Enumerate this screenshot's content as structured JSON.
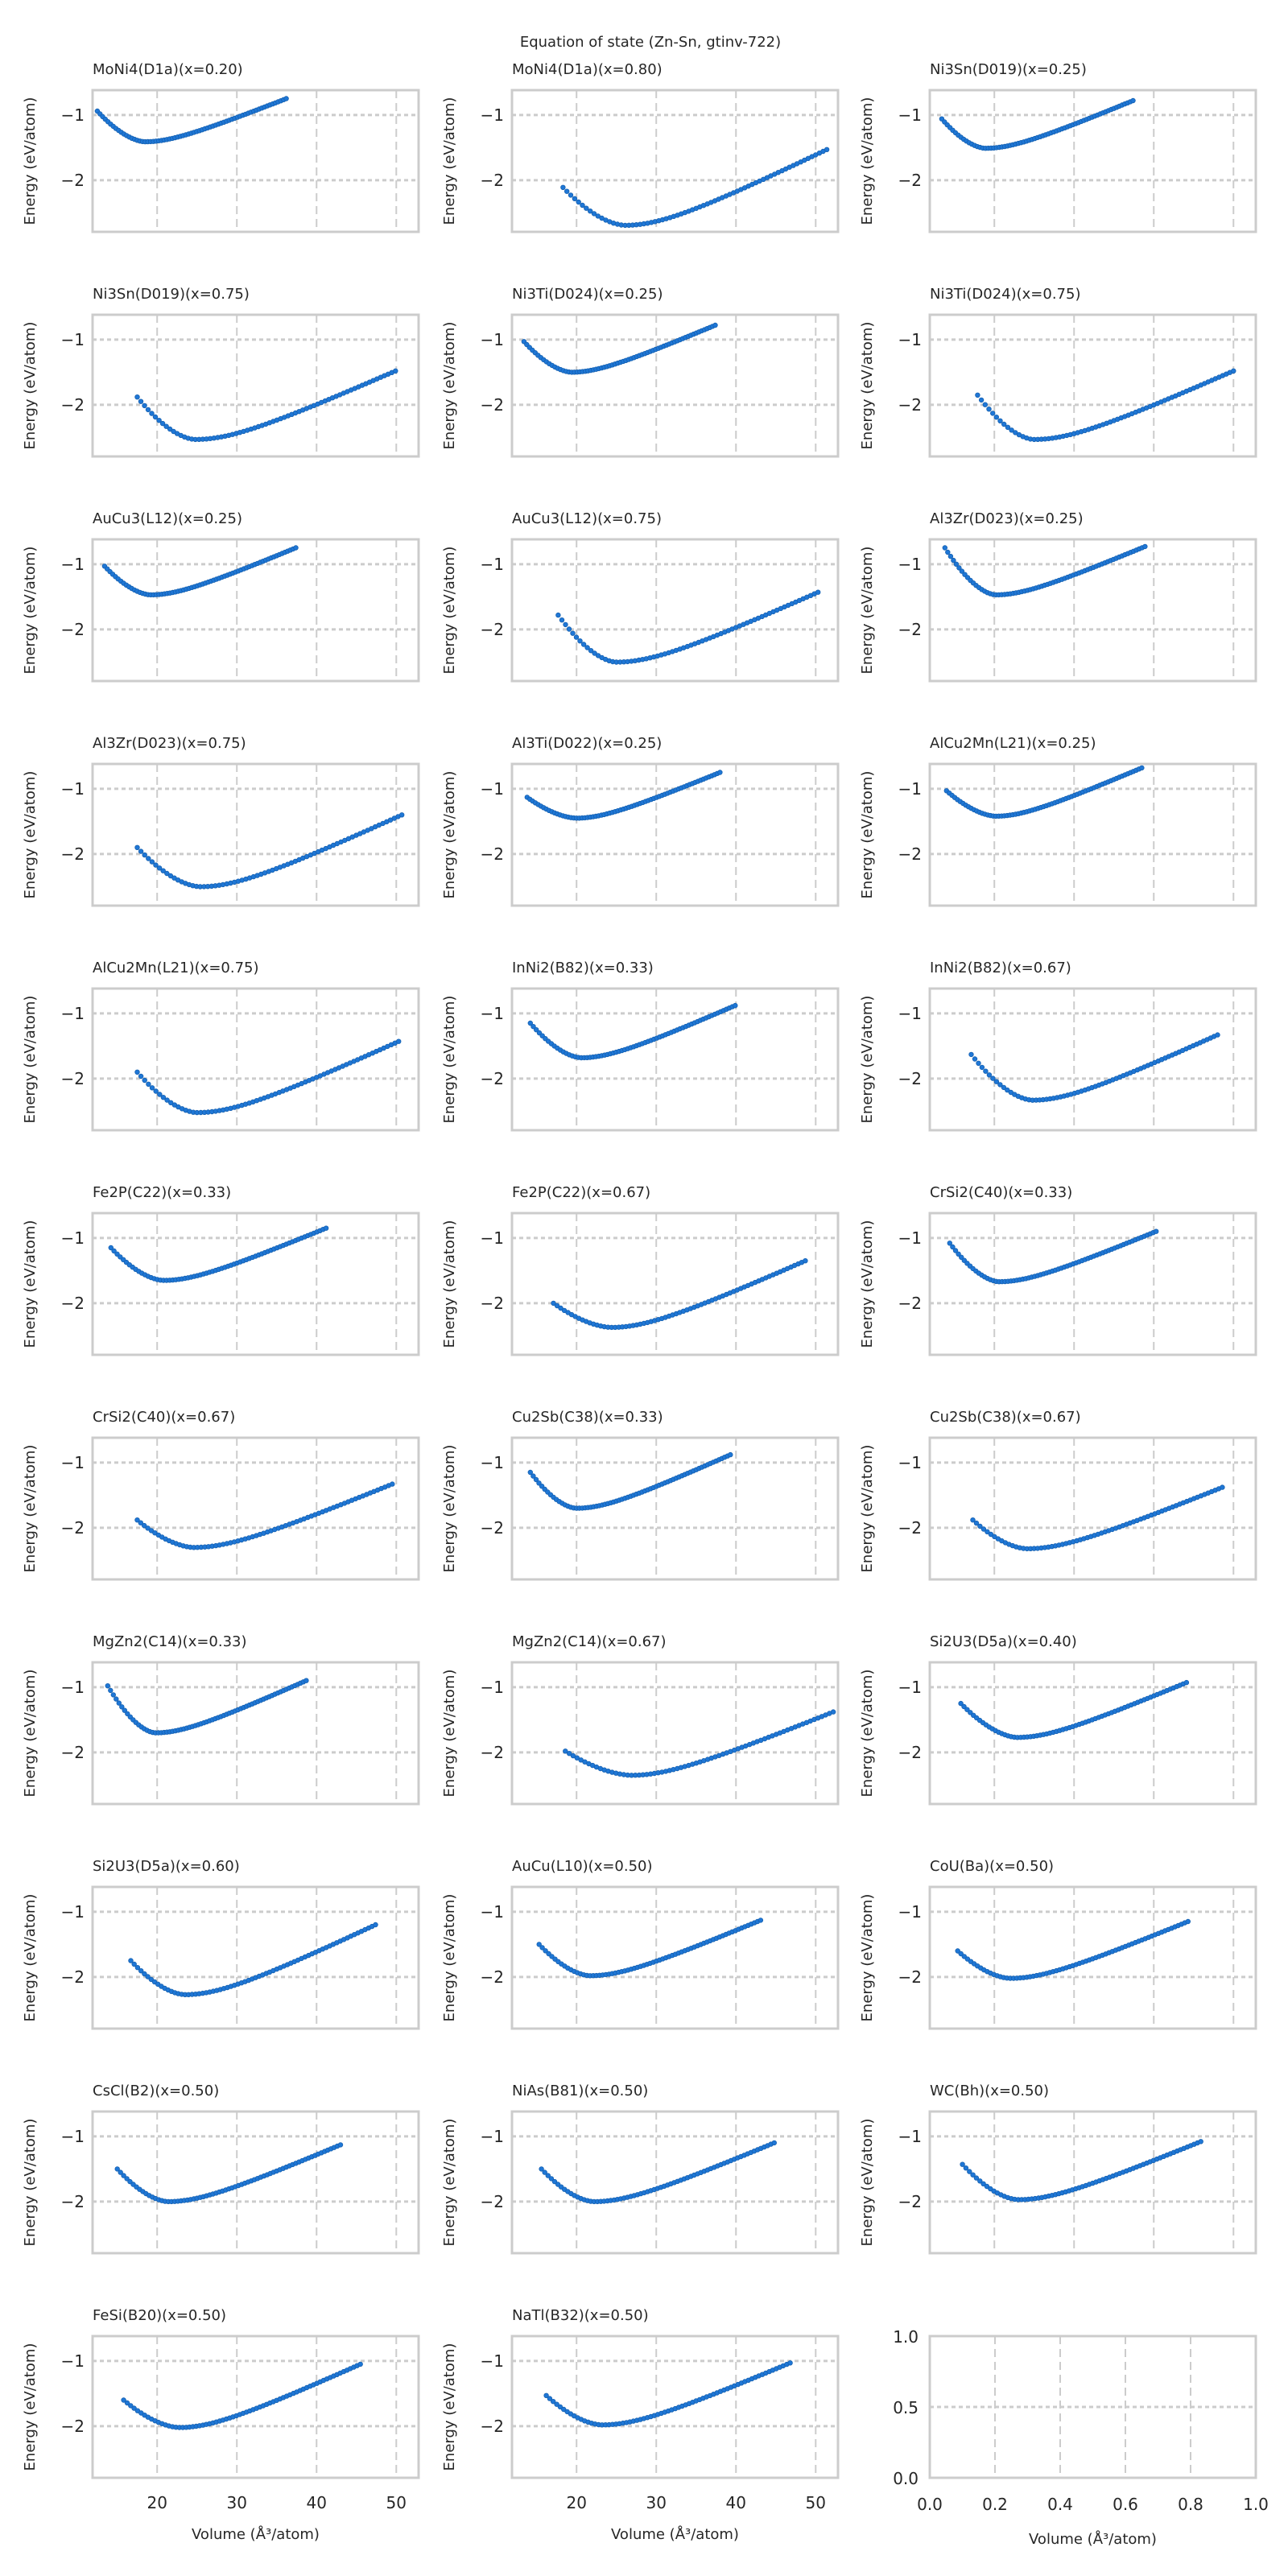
{
  "chart_data": {
    "type": "scatter",
    "title": "Equation of state (Zn-Sn, gtinv-722)",
    "xlabel": "Volume (Å$^3$/atom)",
    "xlabel_display": "Volume (Å³/atom)",
    "ylabel": "Energy (eV/atom)",
    "xlim": [
      11.9,
      52.8
    ],
    "ylim": [
      -2.79,
      -0.62
    ],
    "xticks": [
      20,
      30,
      40,
      50
    ],
    "yticks": [
      -1,
      -2
    ],
    "ytick_labels": [
      "−1",
      "−2"
    ],
    "grid": true,
    "marker_color": "#1f77d6",
    "marker_edge_color": "#1560b0",
    "grid_color": "#cccccc",
    "frame_color": "#cccccc",
    "panels": [
      {
        "title": "MoNi4(D1a)(x=0.20)",
        "start": [
          12.5,
          -0.94
        ],
        "min": [
          18.5,
          -1.41
        ],
        "end": [
          36.2,
          -0.75
        ]
      },
      {
        "title": "MoNi4(D1a)(x=0.80)",
        "start": [
          18.3,
          -2.11
        ],
        "min": [
          26.1,
          -2.69
        ],
        "end": [
          51.4,
          -1.53
        ]
      },
      {
        "title": "Ni3Sn(D019)(x=0.25)",
        "start": [
          13.4,
          -1.06
        ],
        "min": [
          18.9,
          -1.51
        ],
        "end": [
          37.4,
          -0.78
        ]
      },
      {
        "title": "Ni3Sn(D019)(x=0.75)",
        "start": [
          17.5,
          -1.88
        ],
        "min": [
          24.8,
          -2.53
        ],
        "end": [
          49.9,
          -1.48
        ]
      },
      {
        "title": "Ni3Ti(D024)(x=0.25)",
        "start": [
          13.4,
          -1.03
        ],
        "min": [
          19.4,
          -1.5
        ],
        "end": [
          37.4,
          -0.78
        ]
      },
      {
        "title": "Ni3Ti(D024)(x=0.75)",
        "start": [
          17.9,
          -1.85
        ],
        "min": [
          25.0,
          -2.53
        ],
        "end": [
          50.0,
          -1.48
        ]
      },
      {
        "title": "AuCu3(L12)(x=0.25)",
        "start": [
          13.4,
          -1.03
        ],
        "min": [
          19.2,
          -1.47
        ],
        "end": [
          37.4,
          -0.75
        ]
      },
      {
        "title": "AuCu3(L12)(x=0.75)",
        "start": [
          17.7,
          -1.78
        ],
        "min": [
          25.0,
          -2.5
        ],
        "end": [
          50.3,
          -1.43
        ]
      },
      {
        "title": "Al3Zr(D023)(x=0.25)",
        "start": [
          13.8,
          -0.75
        ],
        "min": [
          20.2,
          -1.47
        ],
        "end": [
          38.9,
          -0.73
        ]
      },
      {
        "title": "Al3Zr(D023)(x=0.75)",
        "start": [
          17.5,
          -1.9
        ],
        "min": [
          25.4,
          -2.5
        ],
        "end": [
          50.7,
          -1.4
        ]
      },
      {
        "title": "Al3Ti(D022)(x=0.25)",
        "start": [
          13.8,
          -1.13
        ],
        "min": [
          20.0,
          -1.45
        ],
        "end": [
          38.0,
          -0.75
        ]
      },
      {
        "title": "AlCu2Mn(L21)(x=0.25)",
        "start": [
          14.0,
          -1.03
        ],
        "min": [
          20.2,
          -1.42
        ],
        "end": [
          38.5,
          -0.68
        ]
      },
      {
        "title": "AlCu2Mn(L21)(x=0.75)",
        "start": [
          17.5,
          -1.9
        ],
        "min": [
          25.0,
          -2.52
        ],
        "end": [
          50.3,
          -1.43
        ]
      },
      {
        "title": "InNi2(B82)(x=0.33)",
        "start": [
          14.2,
          -1.15
        ],
        "min": [
          20.6,
          -1.68
        ],
        "end": [
          39.9,
          -0.88
        ]
      },
      {
        "title": "InNi2(B82)(x=0.67)",
        "start": [
          17.1,
          -1.63
        ],
        "min": [
          24.8,
          -2.33
        ],
        "end": [
          48.0,
          -1.33
        ]
      },
      {
        "title": "Fe2P(C22)(x=0.33)",
        "start": [
          14.2,
          -1.15
        ],
        "min": [
          20.8,
          -1.65
        ],
        "end": [
          41.2,
          -0.85
        ]
      },
      {
        "title": "Fe2P(C22)(x=0.67)",
        "start": [
          17.1,
          -2.0
        ],
        "min": [
          24.4,
          -2.37
        ],
        "end": [
          48.7,
          -1.35
        ]
      },
      {
        "title": "CrSi2(C40)(x=0.33)",
        "start": [
          14.4,
          -1.08
        ],
        "min": [
          20.6,
          -1.67
        ],
        "end": [
          40.3,
          -0.9
        ]
      },
      {
        "title": "CrSi2(C40)(x=0.67)",
        "start": [
          17.5,
          -1.88
        ],
        "min": [
          24.6,
          -2.3
        ],
        "end": [
          49.5,
          -1.33
        ]
      },
      {
        "title": "Cu2Sb(C38)(x=0.33)",
        "start": [
          14.2,
          -1.15
        ],
        "min": [
          20.0,
          -1.7
        ],
        "end": [
          39.3,
          -0.88
        ]
      },
      {
        "title": "Cu2Sb(C38)(x=0.67)",
        "start": [
          17.3,
          -1.88
        ],
        "min": [
          24.1,
          -2.32
        ],
        "end": [
          48.6,
          -1.38
        ]
      },
      {
        "title": "MgZn2(C14)(x=0.33)",
        "start": [
          13.8,
          -0.98
        ],
        "min": [
          19.8,
          -1.7
        ],
        "end": [
          38.7,
          -0.9
        ]
      },
      {
        "title": "MgZn2(C14)(x=0.67)",
        "start": [
          18.6,
          -1.98
        ],
        "min": [
          26.9,
          -2.35
        ],
        "end": [
          52.2,
          -1.38
        ]
      },
      {
        "title": "Si2U3(D5a)(x=0.40)",
        "start": [
          15.8,
          -1.25
        ],
        "min": [
          22.9,
          -1.77
        ],
        "end": [
          44.1,
          -0.93
        ]
      },
      {
        "title": "Si2U3(D5a)(x=0.60)",
        "start": [
          16.7,
          -1.75
        ],
        "min": [
          23.5,
          -2.27
        ],
        "end": [
          47.4,
          -1.2
        ]
      },
      {
        "title": "AuCu(L10)(x=0.50)",
        "start": [
          15.3,
          -1.5
        ],
        "min": [
          21.7,
          -1.98
        ],
        "end": [
          43.1,
          -1.13
        ]
      },
      {
        "title": "CoU(Ba)(x=0.50)",
        "start": [
          15.4,
          -1.6
        ],
        "min": [
          22.0,
          -2.02
        ],
        "end": [
          44.3,
          -1.15
        ]
      },
      {
        "title": "CsCl(B2)(x=0.50)",
        "start": [
          15.0,
          -1.5
        ],
        "min": [
          21.4,
          -2.0
        ],
        "end": [
          43.0,
          -1.13
        ]
      },
      {
        "title": "NiAs(B81)(x=0.50)",
        "start": [
          15.6,
          -1.5
        ],
        "min": [
          22.2,
          -2.0
        ],
        "end": [
          44.8,
          -1.1
        ]
      },
      {
        "title": "WC(Bh)(x=0.50)",
        "start": [
          16.0,
          -1.43
        ],
        "min": [
          23.0,
          -1.97
        ],
        "end": [
          45.9,
          -1.08
        ]
      },
      {
        "title": "FeSi(B20)(x=0.50)",
        "start": [
          15.8,
          -1.6
        ],
        "min": [
          22.8,
          -2.02
        ],
        "end": [
          45.5,
          -1.05
        ]
      },
      {
        "title": "NaTl(B32)(x=0.50)",
        "start": [
          16.2,
          -1.53
        ],
        "min": [
          23.2,
          -1.98
        ],
        "end": [
          46.8,
          -1.03
        ]
      }
    ],
    "empty_panel": {
      "xlim": [
        0,
        1
      ],
      "ylim": [
        0,
        1
      ],
      "xtick_labels": [
        "0.0",
        "0.2",
        "0.4",
        "0.6",
        "0.8",
        "1.0"
      ],
      "ytick_labels": [
        "0.0",
        "0.5",
        "1.0"
      ]
    }
  }
}
